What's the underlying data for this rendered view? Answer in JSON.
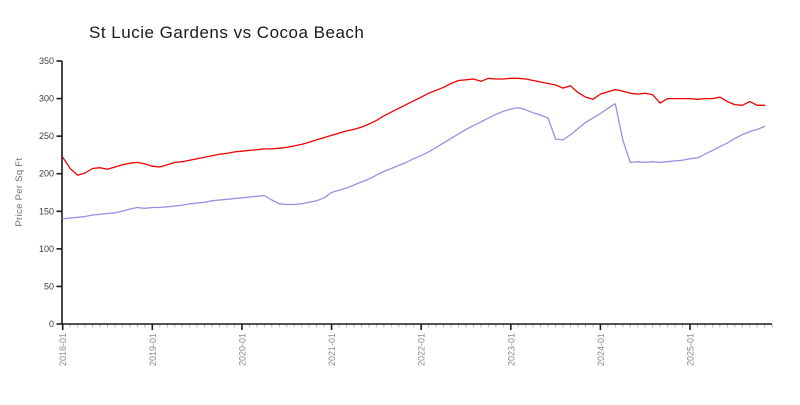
{
  "chart_data": {
    "type": "line",
    "title": "St Lucie Gardens vs Cocoa Beach",
    "xlabel": "",
    "ylabel": "Price Per Sq Ft",
    "ylim": [
      0,
      350
    ],
    "grid": false,
    "legend_position": "none",
    "y_ticks": [
      0,
      50,
      100,
      150,
      200,
      250,
      300,
      350
    ],
    "x_tick_labels": [
      "2018-01",
      "2019-01",
      "2020-01",
      "2021-01",
      "2022-01",
      "2023-01",
      "2024-01",
      "2025-01"
    ],
    "x": [
      "2018-01",
      "2018-02",
      "2018-03",
      "2018-04",
      "2018-05",
      "2018-06",
      "2018-07",
      "2018-08",
      "2018-09",
      "2018-10",
      "2018-11",
      "2018-12",
      "2019-01",
      "2019-02",
      "2019-03",
      "2019-04",
      "2019-05",
      "2019-06",
      "2019-07",
      "2019-08",
      "2019-09",
      "2019-10",
      "2019-11",
      "2019-12",
      "2020-01",
      "2020-02",
      "2020-03",
      "2020-04",
      "2020-05",
      "2020-06",
      "2020-07",
      "2020-08",
      "2020-09",
      "2020-10",
      "2020-11",
      "2020-12",
      "2021-01",
      "2021-02",
      "2021-03",
      "2021-04",
      "2021-05",
      "2021-06",
      "2021-07",
      "2021-08",
      "2021-09",
      "2021-10",
      "2021-11",
      "2021-12",
      "2022-01",
      "2022-02",
      "2022-03",
      "2022-04",
      "2022-05",
      "2022-06",
      "2022-07",
      "2022-08",
      "2022-09",
      "2022-10",
      "2022-11",
      "2022-12",
      "2023-01",
      "2023-02",
      "2023-03",
      "2023-04",
      "2023-05",
      "2023-06",
      "2023-07",
      "2023-08",
      "2023-09",
      "2023-10",
      "2023-11",
      "2023-12",
      "2024-01",
      "2024-02",
      "2024-03",
      "2024-04",
      "2024-05",
      "2024-06",
      "2024-07",
      "2024-08",
      "2024-09",
      "2024-10",
      "2024-11",
      "2024-12",
      "2025-01",
      "2025-02",
      "2025-03",
      "2025-04",
      "2025-05",
      "2025-06",
      "2025-07",
      "2025-08",
      "2025-09",
      "2025-10",
      "2025-11"
    ],
    "series": [
      {
        "name": "St Lucie Gardens",
        "color": "#f00000",
        "values": [
          222,
          207,
          198,
          201,
          207,
          208,
          206,
          209,
          212,
          214,
          215,
          213,
          210,
          209,
          212,
          215,
          216,
          218,
          220,
          222,
          224,
          226,
          227,
          229,
          230,
          231,
          232,
          233,
          233,
          234,
          235,
          237,
          239,
          242,
          245,
          248,
          251,
          254,
          257,
          259,
          262,
          266,
          271,
          277,
          282,
          287,
          292,
          297,
          302,
          307,
          311,
          315,
          320,
          324,
          325,
          326,
          323,
          327,
          326,
          326,
          327,
          327,
          326,
          324,
          322,
          320,
          318,
          314,
          317,
          308,
          302,
          299,
          306,
          309,
          312,
          310,
          307,
          306,
          307,
          305,
          294,
          300,
          300,
          300,
          300,
          299,
          300,
          300,
          302,
          296,
          292,
          291,
          296,
          291,
          291
        ]
      },
      {
        "name": "Cocoa Beach",
        "color": "#9393e3",
        "values": [
          140,
          141,
          142,
          143,
          145,
          146,
          147,
          148,
          150,
          153,
          155,
          154,
          155,
          155,
          156,
          157,
          158,
          160,
          161,
          162,
          164,
          165,
          166,
          167,
          168,
          169,
          170,
          171,
          165,
          160,
          159,
          159,
          160,
          162,
          164,
          168,
          175,
          178,
          181,
          185,
          189,
          193,
          198,
          203,
          207,
          211,
          215,
          220,
          224,
          229,
          235,
          241,
          247,
          253,
          259,
          264,
          269,
          274,
          279,
          283,
          286,
          288,
          285,
          281,
          278,
          274,
          246,
          245,
          252,
          260,
          268,
          274,
          280,
          287,
          293,
          245,
          215,
          216,
          215,
          216,
          215,
          216,
          217,
          218,
          220,
          221,
          226,
          231,
          236,
          241,
          247,
          252,
          256,
          259,
          263
        ]
      }
    ]
  }
}
